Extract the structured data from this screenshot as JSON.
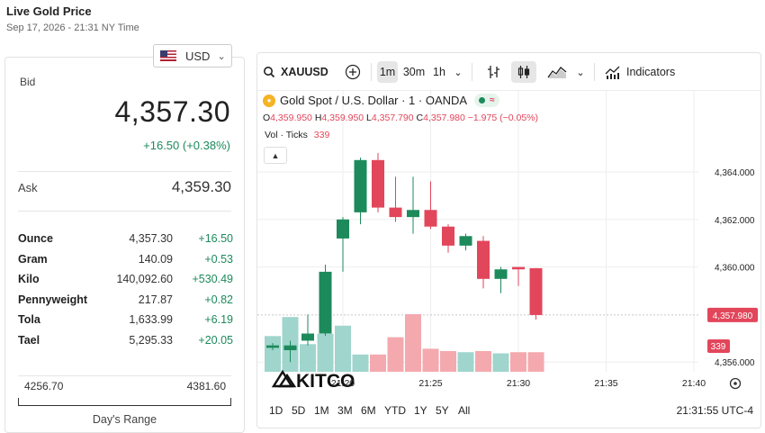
{
  "header": {
    "title": "Live Gold Price",
    "subtitle": "Sep 17, 2026 - 21:31 NY Time"
  },
  "currency": {
    "selected": "USD",
    "icon": "us-flag-icon"
  },
  "quote": {
    "bid_label": "Bid",
    "bid": "4,357.30",
    "change": "+16.50 (+0.38%)",
    "ask_label": "Ask",
    "ask": "4,359.30"
  },
  "units": [
    {
      "name": "Ounce",
      "price": "4,357.30",
      "change": "+16.50"
    },
    {
      "name": "Gram",
      "price": "140.09",
      "change": "+0.53"
    },
    {
      "name": "Kilo",
      "price": "140,092.60",
      "change": "+530.49"
    },
    {
      "name": "Pennyweight",
      "price": "217.87",
      "change": "+0.82"
    },
    {
      "name": "Tola",
      "price": "1,633.99",
      "change": "+6.19"
    },
    {
      "name": "Tael",
      "price": "5,295.33",
      "change": "+20.05"
    }
  ],
  "days_range": {
    "low": "4256.70",
    "high": "4381.60",
    "label": "Day's Range"
  },
  "toolbar": {
    "symbol": "XAUUSD",
    "intervals": [
      "1m",
      "30m",
      "1h"
    ],
    "active_interval": "1m",
    "indicators_label": "Indicators"
  },
  "chart_legend": {
    "title": "Gold Spot / U.S. Dollar · 1 · OANDA",
    "o_label": "O",
    "o": "4,359.950",
    "h_label": "H",
    "h": "4,359.950",
    "l_label": "L",
    "l": "4,357.790",
    "c_label": "C",
    "c": "4,357.980",
    "chg": "−1.975 (−0.05%)",
    "vol_label": "Vol · Ticks",
    "vol": "339"
  },
  "watermark": "KITCO",
  "timeframes": [
    "1D",
    "5D",
    "1M",
    "3M",
    "6M",
    "YTD",
    "1Y",
    "5Y",
    "All"
  ],
  "clock": "21:31:55 UTC-4",
  "colors": {
    "up": "#1d8a5c",
    "down": "#e2465b",
    "vol_up": "#9fd5cc",
    "vol_down": "#f4a9ae"
  },
  "chart_data": {
    "type": "candlestick",
    "y_ticks": [
      "4,364.000",
      "4,362.000",
      "4,360.000",
      "4,356.000"
    ],
    "y_tick_values": [
      4364,
      4362,
      4360,
      4356
    ],
    "x_ticks": [
      "21:20",
      "21:25",
      "21:30",
      "21:35",
      "21:40"
    ],
    "x_tick_minutes": [
      20,
      25,
      30,
      35,
      40
    ],
    "last_price": "4,357.980",
    "last_price_value": 4357.98,
    "last_volume": "339",
    "candles": [
      {
        "t": 16,
        "o": 4356.6,
        "h": 4356.8,
        "l": 4356.5,
        "c": 4356.7
      },
      {
        "t": 17,
        "o": 4356.5,
        "h": 4356.9,
        "l": 4356.0,
        "c": 4356.7
      },
      {
        "t": 18,
        "o": 4356.9,
        "h": 4358.0,
        "l": 4356.7,
        "c": 4357.2
      },
      {
        "t": 19,
        "o": 4357.2,
        "h": 4360.1,
        "l": 4357.1,
        "c": 4359.8
      },
      {
        "t": 20,
        "o": 4361.2,
        "h": 4362.1,
        "l": 4359.8,
        "c": 4362.0
      },
      {
        "t": 21,
        "o": 4362.3,
        "h": 4364.6,
        "l": 4361.8,
        "c": 4364.5
      },
      {
        "t": 22,
        "o": 4364.5,
        "h": 4364.8,
        "l": 4362.3,
        "c": 4362.5
      },
      {
        "t": 23,
        "o": 4362.5,
        "h": 4363.8,
        "l": 4361.9,
        "c": 4362.1
      },
      {
        "t": 24,
        "o": 4362.1,
        "h": 4363.8,
        "l": 4361.4,
        "c": 4362.4
      },
      {
        "t": 25,
        "o": 4362.4,
        "h": 4363.6,
        "l": 4361.6,
        "c": 4361.7
      },
      {
        "t": 26,
        "o": 4361.7,
        "h": 4361.8,
        "l": 4360.6,
        "c": 4360.9
      },
      {
        "t": 27,
        "o": 4360.9,
        "h": 4361.4,
        "l": 4360.7,
        "c": 4361.3
      },
      {
        "t": 28,
        "o": 4361.1,
        "h": 4361.3,
        "l": 4359.1,
        "c": 4359.5
      },
      {
        "t": 29,
        "o": 4359.5,
        "h": 4360.0,
        "l": 4358.9,
        "c": 4359.9
      },
      {
        "t": 30,
        "o": 4360.0,
        "h": 4360.0,
        "l": 4359.2,
        "c": 4359.9
      },
      {
        "t": 31,
        "o": 4359.95,
        "h": 4359.95,
        "l": 4357.79,
        "c": 4357.98
      }
    ],
    "volume_up": [
      true,
      true,
      true,
      true,
      true,
      true,
      false,
      false,
      false,
      false,
      false,
      true,
      false,
      true,
      false,
      false
    ],
    "volume_rel": [
      0.62,
      0.95,
      0.48,
      0.66,
      0.8,
      0.3,
      0.3,
      0.6,
      1.0,
      0.4,
      0.36,
      0.34,
      0.36,
      0.32,
      0.34,
      0.34
    ]
  }
}
